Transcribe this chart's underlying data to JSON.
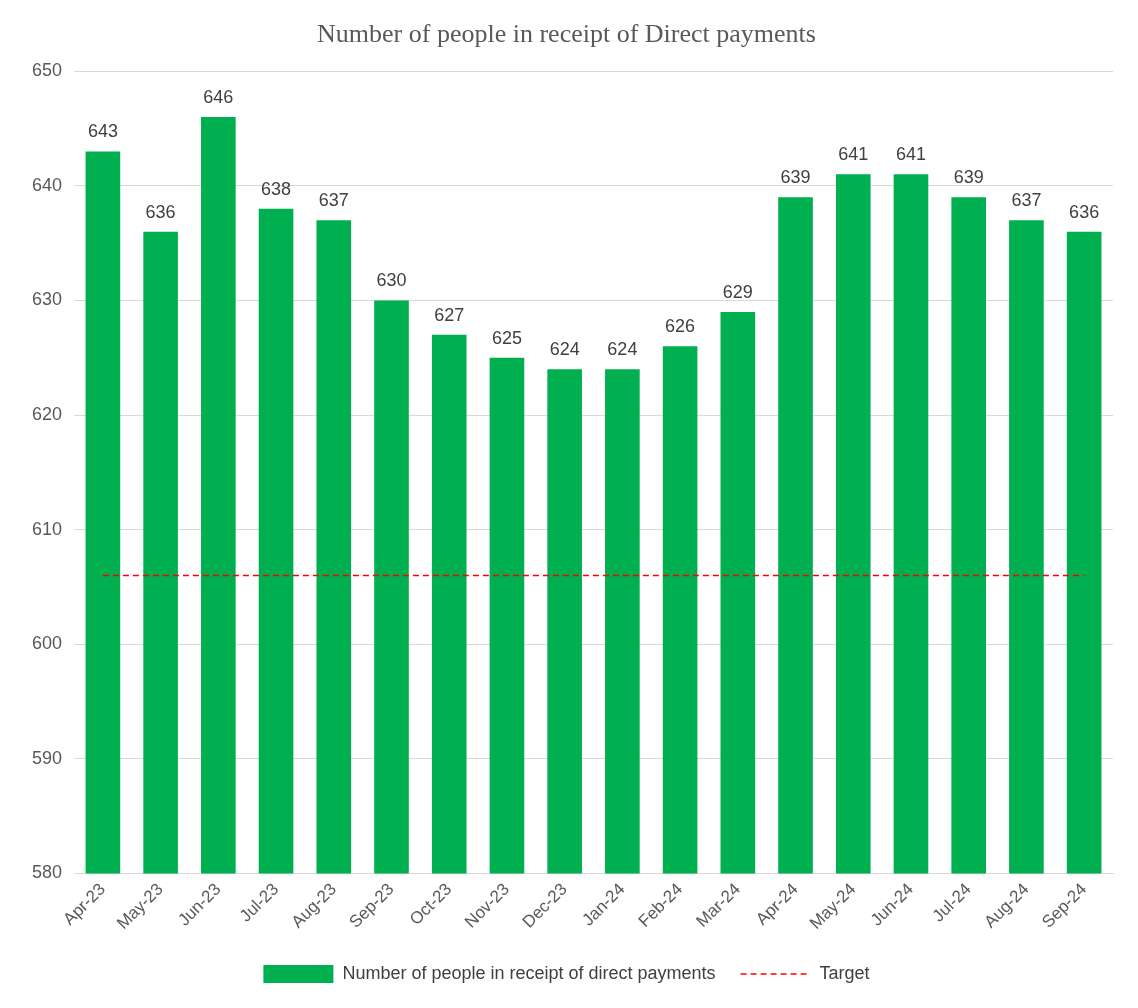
{
  "chart_data": {
    "type": "bar",
    "title": "Number of people in receipt of Direct payments",
    "categories": [
      "Apr-23",
      "May-23",
      "Jun-23",
      "Jul-23",
      "Aug-23",
      "Sep-23",
      "Oct-23",
      "Nov-23",
      "Dec-23",
      "Jan-24",
      "Feb-24",
      "Mar-24",
      "Apr-24",
      "May-24",
      "Jun-24",
      "Jul-24",
      "Aug-24",
      "Sep-24"
    ],
    "series": [
      {
        "name": "Number of people in receipt of direct payments",
        "color": "#00b050",
        "values": [
          643,
          636,
          646,
          638,
          637,
          630,
          627,
          625,
          624,
          624,
          626,
          629,
          639,
          641,
          641,
          639,
          637,
          636
        ],
        "value_labels": [
          "643",
          "636",
          "646",
          "638",
          "637",
          "630",
          "627",
          "625",
          "624",
          "624",
          "626",
          "629",
          "639",
          "641",
          "641",
          "639",
          "637",
          "636"
        ]
      },
      {
        "name": "Target",
        "type": "line",
        "color": "#ff0000",
        "line_style": "dashed",
        "marker": "none",
        "values": [
          606,
          606,
          606,
          606,
          606,
          606,
          606,
          606,
          606,
          606,
          606,
          606,
          606,
          606,
          606,
          606,
          606,
          606
        ]
      }
    ],
    "ylim": [
      580,
      650
    ],
    "yticks": [
      580,
      590,
      600,
      610,
      620,
      630,
      640,
      650
    ],
    "grid": "y",
    "legend": "bottom"
  }
}
